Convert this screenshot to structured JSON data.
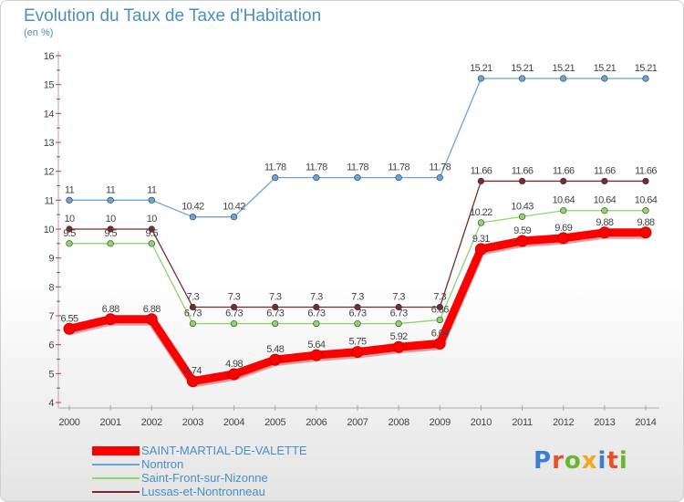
{
  "header": {
    "title": "Evolution du Taux de Taxe d'Habitation",
    "subtitle": "(en %)"
  },
  "logo": {
    "text": "Proxiti",
    "colors": [
      "#3a7fd0",
      "#e8502a",
      "#6bb62e",
      "#f0a81c",
      "#3a7fd0",
      "#e8502a",
      "#6bb62e"
    ]
  },
  "chart_data": {
    "type": "line",
    "title": "Evolution du Taux de Taxe d'Habitation",
    "ylabel": "(en %)",
    "xlabel": "",
    "x": [
      "2000",
      "2001",
      "2002",
      "2003",
      "2004",
      "2005",
      "2006",
      "2007",
      "2008",
      "2009",
      "2010",
      "2011",
      "2012",
      "2013",
      "2014"
    ],
    "ylim": [
      4,
      16
    ],
    "yticks": [
      "4",
      "5",
      "6",
      "7",
      "8",
      "9",
      "10",
      "11",
      "12",
      "13",
      "14",
      "15",
      "16"
    ],
    "grid": false,
    "legend": "bottom-left",
    "series": [
      {
        "name": "SAINT-MARTIAL-DE-VALETTE",
        "color": "#ff0000",
        "values": [
          6.55,
          6.88,
          6.88,
          4.74,
          4.98,
          5.48,
          5.64,
          5.75,
          5.92,
          6.04,
          9.31,
          9.59,
          9.69,
          9.88,
          9.88
        ],
        "labels": [
          "6.55",
          "6.88",
          "6.88",
          "4.74",
          "4.98",
          "5.48",
          "5.64",
          "5.75",
          "5.92",
          "6.04",
          "9.31",
          "9.59",
          "9.69",
          "9.88",
          "9.88"
        ]
      },
      {
        "name": "Nontron",
        "color": "#6aa5d9",
        "values": [
          11,
          11,
          11,
          10.42,
          10.42,
          11.78,
          11.78,
          11.78,
          11.78,
          11.78,
          15.21,
          15.21,
          15.21,
          15.21,
          15.21
        ],
        "labels": [
          "11",
          "11",
          "11",
          "10.42",
          "10.42",
          "11.78",
          "11.78",
          "11.78",
          "11.78",
          "11.78",
          "15.21",
          "15.21",
          "15.21",
          "15.21",
          "15.21"
        ]
      },
      {
        "name": "Saint-Front-sur-Nizonne",
        "color": "#8fd66a",
        "values": [
          9.5,
          9.5,
          9.5,
          6.73,
          6.73,
          6.73,
          6.73,
          6.73,
          6.73,
          6.86,
          10.22,
          10.43,
          10.64,
          10.64,
          10.64
        ],
        "labels": [
          "9.5",
          "9.5",
          "9.5",
          "6.73",
          "6.73",
          "6.73",
          "6.73",
          "6.73",
          "6.73",
          "6.86",
          "10.22",
          "10.43",
          "10.64",
          "10.64",
          "10.64"
        ]
      },
      {
        "name": "Lussas-et-Nontronneau",
        "color": "#7a2a2a",
        "values": [
          10,
          10,
          10,
          7.3,
          7.3,
          7.3,
          7.3,
          7.3,
          7.3,
          7.3,
          11.66,
          11.66,
          11.66,
          11.66,
          11.66
        ],
        "labels": [
          "10",
          "10",
          "10",
          "7.3",
          "7.3",
          "7.3",
          "7.3",
          "7.3",
          "7.3",
          "7.3",
          "11.66",
          "11.66",
          "11.66",
          "11.66",
          "11.66"
        ]
      }
    ]
  }
}
